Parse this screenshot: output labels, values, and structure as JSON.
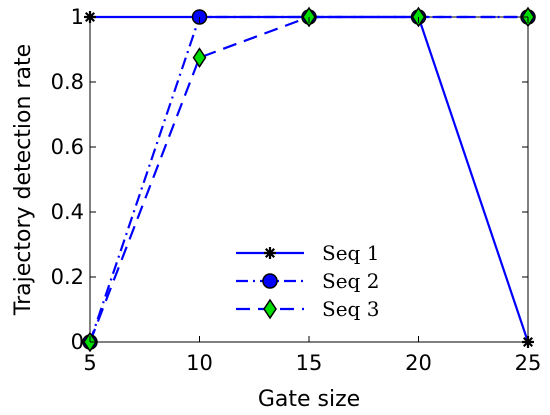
{
  "chart_data": {
    "type": "line",
    "title": "",
    "xlabel": "Gate size",
    "ylabel": "Trajectory detection rate",
    "xlim": [
      5,
      25
    ],
    "ylim": [
      0,
      1
    ],
    "x": [
      5,
      10,
      15,
      20,
      25
    ],
    "xticks": [
      "5",
      "10",
      "15",
      "20",
      "25"
    ],
    "yticks": [
      "0",
      "0.2",
      "0.4",
      "0.6",
      "0.8",
      "1"
    ],
    "grid": false,
    "legend_position": "bottom-center",
    "series": [
      {
        "name": "Seq 1",
        "values": [
          1,
          1,
          1,
          1,
          0
        ],
        "color": "#0000ff",
        "line_style": "solid",
        "marker": "asterisk",
        "marker_fill": "#000000"
      },
      {
        "name": "Seq 2",
        "values": [
          0,
          1,
          1,
          1,
          1
        ],
        "color": "#0000ff",
        "line_style": "dash-dot",
        "marker": "circle",
        "marker_fill": "#0000ff"
      },
      {
        "name": "Seq 3",
        "values": [
          0,
          0.875,
          1,
          1,
          1
        ],
        "color": "#0000ff",
        "line_style": "dashed",
        "marker": "diamond",
        "marker_fill": "#00dd00"
      }
    ]
  }
}
